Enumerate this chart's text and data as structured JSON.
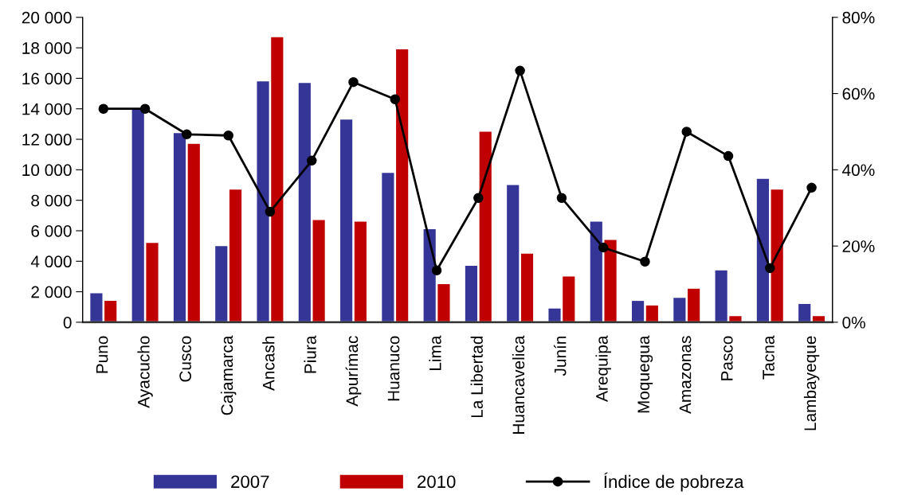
{
  "chart_data": {
    "type": "bar",
    "categories": [
      "Puno",
      "Ayacucho",
      "Cusco",
      "Cajamarca",
      "Ancash",
      "Piura",
      "Apurímac",
      "Huanuco",
      "Lima",
      "La Libertad",
      "Huancavelica",
      "Junín",
      "Arequipa",
      "Moquegua",
      "Amazonas",
      "Pasco",
      "Tacna",
      "Lambayeque"
    ],
    "series": [
      {
        "name": "2007",
        "color": "#353598",
        "values": [
          1900,
          14000,
          12400,
          5000,
          15800,
          15700,
          13300,
          9800,
          6100,
          3700,
          9000,
          900,
          6600,
          1400,
          1600,
          3400,
          9400,
          1200
        ]
      },
      {
        "name": "2010",
        "color": "#c00000",
        "values": [
          1400,
          5200,
          11700,
          8700,
          18700,
          6700,
          6600,
          17900,
          2500,
          12500,
          4500,
          3000,
          5400,
          1100,
          2200,
          400,
          8700,
          400
        ]
      },
      {
        "name": "Índice de pobreza",
        "type": "line",
        "axis": "y2",
        "color": "#000000",
        "marker": "circle",
        "values": [
          56,
          56,
          49.3,
          49,
          29,
          42.4,
          63,
          58.5,
          13.6,
          32.6,
          66,
          32.6,
          19.6,
          15.9,
          50,
          43.6,
          14.2,
          35.3
        ]
      }
    ],
    "ylim": [
      0,
      20000
    ],
    "yticks": [
      {
        "value": 0,
        "label": "0"
      },
      {
        "value": 2000,
        "label": "2 000"
      },
      {
        "value": 4000,
        "label": "4 000"
      },
      {
        "value": 6000,
        "label": "6 000"
      },
      {
        "value": 8000,
        "label": "8 000"
      },
      {
        "value": 10000,
        "label": "10 000"
      },
      {
        "value": 12000,
        "label": "12 000"
      },
      {
        "value": 14000,
        "label": "14 000"
      },
      {
        "value": 16000,
        "label": "16 000"
      },
      {
        "value": 18000,
        "label": "18 000"
      },
      {
        "value": 20000,
        "label": "20 000"
      }
    ],
    "y2lim": [
      0,
      80
    ],
    "y2ticks": [
      {
        "value": 0,
        "label": "0%"
      },
      {
        "value": 20,
        "label": "20%"
      },
      {
        "value": 40,
        "label": "40%"
      },
      {
        "value": 60,
        "label": "60%"
      },
      {
        "value": 80,
        "label": "80%"
      }
    ],
    "legend": "bottom",
    "grid": false
  }
}
